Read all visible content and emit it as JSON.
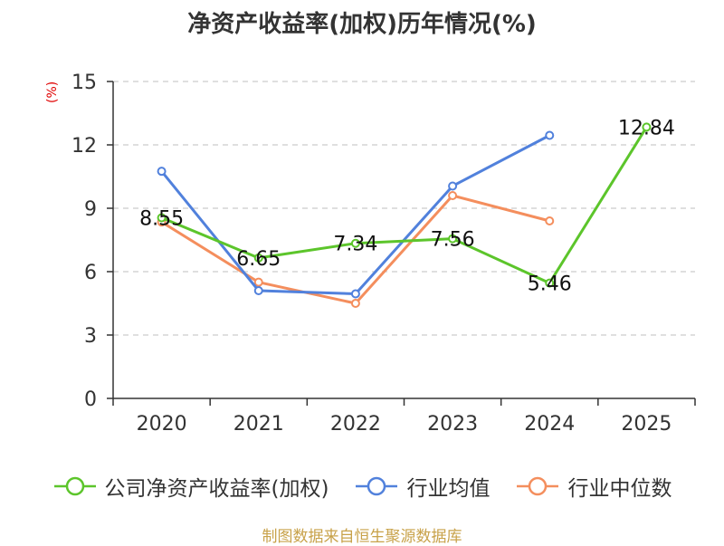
{
  "chart_data": {
    "type": "line",
    "title": "净资产收益率(加权)历年情况(%)",
    "ylabel": "(%)",
    "xlabel": "",
    "categories": [
      "2020",
      "2021",
      "2022",
      "2023",
      "2024",
      "2025"
    ],
    "ylim": [
      0,
      15
    ],
    "yticks": [
      0,
      3,
      6,
      9,
      12,
      15
    ],
    "grid": true,
    "legend_position": "bottom",
    "series": [
      {
        "name": "公司净资产收益率(加权)",
        "color": "#5cc52b",
        "values": [
          8.55,
          6.65,
          7.34,
          7.56,
          5.46,
          12.84
        ],
        "labeled": true
      },
      {
        "name": "行业均值",
        "color": "#5181dc",
        "values": [
          10.75,
          5.1,
          4.95,
          10.05,
          12.45,
          null
        ],
        "labeled": false
      },
      {
        "name": "行业中位数",
        "color": "#f48e5d",
        "values": [
          8.35,
          5.5,
          4.5,
          9.6,
          8.4,
          null
        ],
        "labeled": false
      }
    ]
  },
  "footer": "制图数据来自恒生聚源数据库"
}
